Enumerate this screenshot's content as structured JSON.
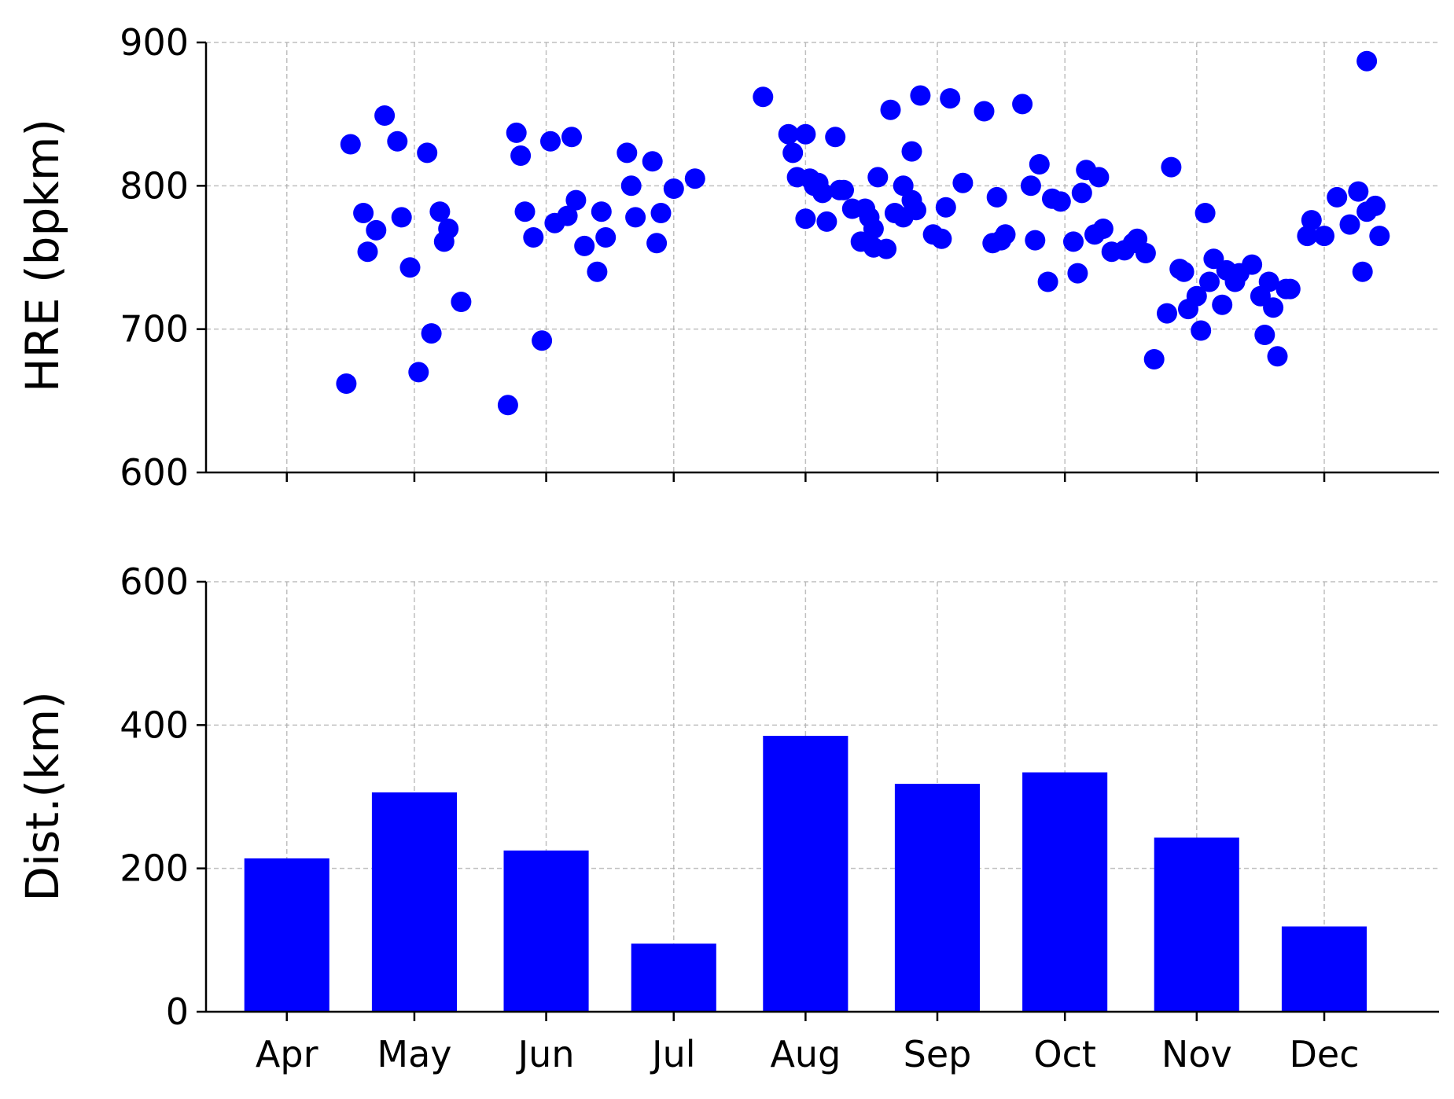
{
  "colors": {
    "marker": "#0000ff",
    "bar": "#0000ff",
    "grid": "#b0b0b0",
    "axis": "#000000"
  },
  "chart_data": [
    {
      "type": "scatter",
      "ylabel": "HRE (bpkm)",
      "ylim": [
        600,
        900
      ],
      "yticks": [
        600,
        700,
        800,
        900
      ],
      "xlim": [
        "2019-03-13",
        "2019-12-28"
      ],
      "month_ticks": [
        "2019-04-01",
        "2019-05-01",
        "2019-06-01",
        "2019-07-01",
        "2019-08-01",
        "2019-09-01",
        "2019-10-01",
        "2019-11-01",
        "2019-12-01"
      ],
      "grid": true,
      "points": [
        [
          "2019-04-15",
          662
        ],
        [
          "2019-04-16",
          829
        ],
        [
          "2019-04-19",
          781
        ],
        [
          "2019-04-20",
          754
        ],
        [
          "2019-04-22",
          769
        ],
        [
          "2019-04-24",
          849
        ],
        [
          "2019-04-27",
          831
        ],
        [
          "2019-04-28",
          778
        ],
        [
          "2019-04-30",
          743
        ],
        [
          "2019-05-02",
          670
        ],
        [
          "2019-05-04",
          823
        ],
        [
          "2019-05-05",
          697
        ],
        [
          "2019-05-07",
          782
        ],
        [
          "2019-05-08",
          761
        ],
        [
          "2019-05-09",
          770
        ],
        [
          "2019-05-12",
          719
        ],
        [
          "2019-05-23",
          647
        ],
        [
          "2019-05-25",
          837
        ],
        [
          "2019-05-26",
          821
        ],
        [
          "2019-05-27",
          782
        ],
        [
          "2019-05-29",
          764
        ],
        [
          "2019-05-31",
          692
        ],
        [
          "2019-06-02",
          831
        ],
        [
          "2019-06-03",
          774
        ],
        [
          "2019-06-06",
          779
        ],
        [
          "2019-06-07",
          834
        ],
        [
          "2019-06-08",
          790
        ],
        [
          "2019-06-10",
          758
        ],
        [
          "2019-06-13",
          740
        ],
        [
          "2019-06-14",
          782
        ],
        [
          "2019-06-15",
          764
        ],
        [
          "2019-06-20",
          823
        ],
        [
          "2019-06-21",
          800
        ],
        [
          "2019-06-22",
          778
        ],
        [
          "2019-06-26",
          817
        ],
        [
          "2019-06-27",
          760
        ],
        [
          "2019-06-28",
          781
        ],
        [
          "2019-07-01",
          798
        ],
        [
          "2019-07-06",
          805
        ],
        [
          "2019-07-22",
          862
        ],
        [
          "2019-07-28",
          836
        ],
        [
          "2019-07-29",
          823
        ],
        [
          "2019-07-30",
          806
        ],
        [
          "2019-08-01",
          836
        ],
        [
          "2019-08-02",
          805
        ],
        [
          "2019-08-01",
          777
        ],
        [
          "2019-08-03",
          800
        ],
        [
          "2019-08-04",
          802
        ],
        [
          "2019-08-05",
          795
        ],
        [
          "2019-08-06",
          775
        ],
        [
          "2019-08-08",
          834
        ],
        [
          "2019-08-09",
          797
        ],
        [
          "2019-08-10",
          797
        ],
        [
          "2019-08-12",
          784
        ],
        [
          "2019-08-14",
          761
        ],
        [
          "2019-08-15",
          784
        ],
        [
          "2019-08-16",
          778
        ],
        [
          "2019-08-17",
          770
        ],
        [
          "2019-08-17",
          757
        ],
        [
          "2019-08-18",
          806
        ],
        [
          "2019-08-20",
          756
        ],
        [
          "2019-08-21",
          853
        ],
        [
          "2019-08-22",
          781
        ],
        [
          "2019-08-24",
          800
        ],
        [
          "2019-08-24",
          778
        ],
        [
          "2019-08-26",
          790
        ],
        [
          "2019-08-26",
          824
        ],
        [
          "2019-08-27",
          783
        ],
        [
          "2019-08-28",
          863
        ],
        [
          "2019-08-31",
          766
        ],
        [
          "2019-09-02",
          763
        ],
        [
          "2019-09-03",
          785
        ],
        [
          "2019-09-04",
          861
        ],
        [
          "2019-09-07",
          802
        ],
        [
          "2019-09-12",
          852
        ],
        [
          "2019-09-14",
          760
        ],
        [
          "2019-09-15",
          792
        ],
        [
          "2019-09-16",
          762
        ],
        [
          "2019-09-17",
          766
        ],
        [
          "2019-09-21",
          857
        ],
        [
          "2019-09-23",
          800
        ],
        [
          "2019-09-24",
          762
        ],
        [
          "2019-09-25",
          815
        ],
        [
          "2019-09-27",
          733
        ],
        [
          "2019-09-28",
          791
        ],
        [
          "2019-09-30",
          789
        ],
        [
          "2019-10-03",
          761
        ],
        [
          "2019-10-04",
          739
        ],
        [
          "2019-10-05",
          795
        ],
        [
          "2019-10-06",
          811
        ],
        [
          "2019-10-08",
          766
        ],
        [
          "2019-10-09",
          806
        ],
        [
          "2019-10-10",
          770
        ],
        [
          "2019-10-12",
          754
        ],
        [
          "2019-10-15",
          755
        ],
        [
          "2019-10-17",
          760
        ],
        [
          "2019-10-18",
          763
        ],
        [
          "2019-10-20",
          753
        ],
        [
          "2019-10-22",
          679
        ],
        [
          "2019-10-25",
          711
        ],
        [
          "2019-10-26",
          813
        ],
        [
          "2019-10-28",
          742
        ],
        [
          "2019-10-29",
          740
        ],
        [
          "2019-10-30",
          714
        ],
        [
          "2019-11-01",
          723
        ],
        [
          "2019-11-02",
          699
        ],
        [
          "2019-11-03",
          781
        ],
        [
          "2019-11-04",
          733
        ],
        [
          "2019-11-05",
          749
        ],
        [
          "2019-11-07",
          717
        ],
        [
          "2019-11-08",
          741
        ],
        [
          "2019-11-10",
          733
        ],
        [
          "2019-11-11",
          739
        ],
        [
          "2019-11-14",
          745
        ],
        [
          "2019-11-16",
          723
        ],
        [
          "2019-11-17",
          696
        ],
        [
          "2019-11-18",
          733
        ],
        [
          "2019-11-19",
          715
        ],
        [
          "2019-11-20",
          681
        ],
        [
          "2019-11-22",
          728
        ],
        [
          "2019-11-23",
          728
        ],
        [
          "2019-11-27",
          765
        ],
        [
          "2019-11-28",
          776
        ],
        [
          "2019-12-01",
          765
        ],
        [
          "2019-12-04",
          792
        ],
        [
          "2019-12-07",
          773
        ],
        [
          "2019-12-09",
          796
        ],
        [
          "2019-12-10",
          740
        ],
        [
          "2019-12-11",
          782
        ],
        [
          "2019-12-13",
          786
        ],
        [
          "2019-12-14",
          765
        ],
        [
          "2019-12-11",
          887
        ]
      ]
    },
    {
      "type": "bar",
      "ylabel": "Dist.(km)",
      "ylim": [
        0,
        600
      ],
      "yticks": [
        0,
        200,
        400,
        600
      ],
      "xlim": [
        "2019-03-13",
        "2019-12-28"
      ],
      "categories": [
        "Apr",
        "May",
        "Jun",
        "Jul",
        "Aug",
        "Sep",
        "Oct",
        "Nov",
        "Dec"
      ],
      "category_dates": [
        "2019-04-01",
        "2019-05-01",
        "2019-06-01",
        "2019-07-01",
        "2019-08-01",
        "2019-09-01",
        "2019-10-01",
        "2019-11-01",
        "2019-12-01"
      ],
      "values": [
        214,
        306,
        225,
        95,
        385,
        318,
        334,
        243,
        119
      ],
      "grid": true
    }
  ]
}
